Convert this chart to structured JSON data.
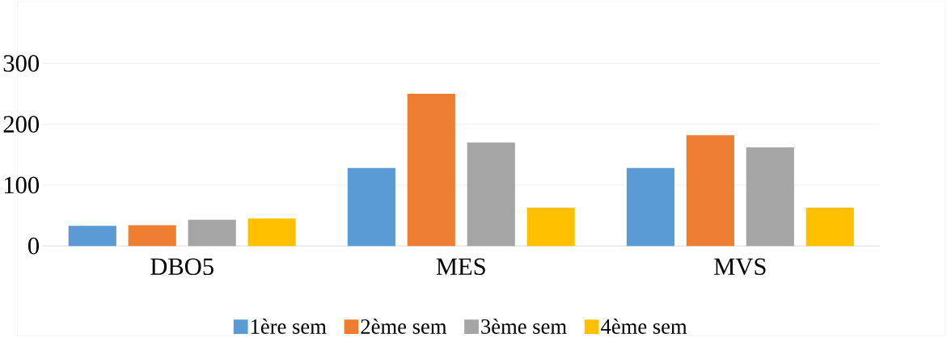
{
  "chart_data": {
    "type": "bar",
    "categories": [
      "DBO5",
      "MES",
      "MVS"
    ],
    "series": [
      {
        "name": "1ère sem",
        "color": "#5b9bd5",
        "values": [
          33,
          128,
          128
        ]
      },
      {
        "name": "2ème sem",
        "color": "#ed7d31",
        "values": [
          34,
          250,
          182
        ]
      },
      {
        "name": "3ème sem",
        "color": "#a5a5a5",
        "values": [
          43,
          170,
          162
        ]
      },
      {
        "name": "4ème sem",
        "color": "#ffc000",
        "values": [
          45,
          63,
          63
        ]
      }
    ],
    "ylim": [
      0,
      300
    ],
    "yticks": [
      0,
      100,
      200,
      300
    ],
    "grid": "y",
    "legend": "bottom"
  }
}
